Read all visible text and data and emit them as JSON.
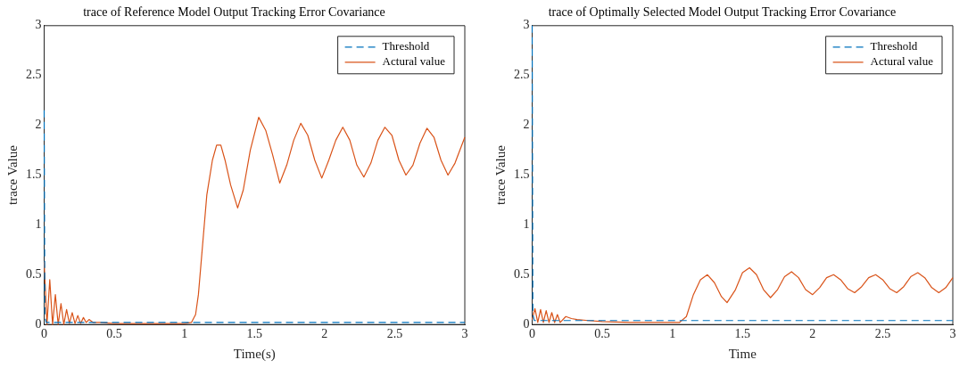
{
  "chart_data": [
    {
      "type": "line",
      "title": "trace of Reference Model Output Tracking Error Covariance",
      "xlabel": "Time(s)",
      "ylabel": "trace Value",
      "xlim": [
        0,
        3
      ],
      "xticks": [
        0,
        0.5,
        1,
        1.5,
        2,
        2.5,
        3
      ],
      "ylim": [
        0,
        3
      ],
      "yticks": [
        0,
        0.5,
        1,
        1.5,
        2,
        2.5,
        3
      ],
      "legend": "top right",
      "grid": false,
      "marker": "none",
      "series": [
        {
          "name": "Threshold",
          "color": "#0072bd",
          "line_style": "dashed",
          "x": [
            0,
            0.005,
            0.015,
            3
          ],
          "values": [
            2.15,
            0.08,
            0.02,
            0.02
          ]
        },
        {
          "name": "Actural value",
          "color": "#d95319",
          "line_style": "solid",
          "x": [
            0,
            0.02,
            0.04,
            0.06,
            0.08,
            0.1,
            0.12,
            0.14,
            0.16,
            0.18,
            0.2,
            0.22,
            0.24,
            0.26,
            0.28,
            0.3,
            0.32,
            0.35,
            0.4,
            0.5,
            0.7,
            0.9,
            1.0,
            1.05,
            1.08,
            1.1,
            1.13,
            1.16,
            1.2,
            1.23,
            1.26,
            1.29,
            1.33,
            1.38,
            1.42,
            1.47,
            1.53,
            1.58,
            1.63,
            1.68,
            1.73,
            1.78,
            1.83,
            1.88,
            1.93,
            1.98,
            2.03,
            2.08,
            2.13,
            2.18,
            2.23,
            2.28,
            2.33,
            2.38,
            2.43,
            2.48,
            2.53,
            2.58,
            2.63,
            2.68,
            2.73,
            2.78,
            2.83,
            2.88,
            2.93,
            3
          ],
          "values": [
            0.63,
            0,
            0.45,
            0,
            0.3,
            0,
            0.21,
            0,
            0.15,
            0.01,
            0.12,
            0.01,
            0.09,
            0.01,
            0.07,
            0.02,
            0.05,
            0.02,
            0.02,
            0.01,
            0.01,
            0.01,
            0.01,
            0.02,
            0.1,
            0.3,
            0.8,
            1.3,
            1.65,
            1.8,
            1.8,
            1.65,
            1.4,
            1.17,
            1.35,
            1.75,
            2.08,
            1.95,
            1.7,
            1.42,
            1.6,
            1.85,
            2.02,
            1.9,
            1.65,
            1.47,
            1.65,
            1.85,
            1.98,
            1.85,
            1.6,
            1.48,
            1.62,
            1.85,
            1.98,
            1.9,
            1.65,
            1.5,
            1.6,
            1.82,
            1.97,
            1.88,
            1.65,
            1.5,
            1.62,
            1.88
          ]
        }
      ]
    },
    {
      "type": "line",
      "title": "trace of Optimally Selected Model Output Tracking Error Covariance",
      "xlabel": "Time",
      "ylabel": "trace Value",
      "xlim": [
        0,
        3
      ],
      "xticks": [
        0,
        0.5,
        1,
        1.5,
        2,
        2.5,
        3
      ],
      "ylim": [
        0,
        3
      ],
      "yticks": [
        0,
        0.5,
        1,
        1.5,
        2,
        2.5,
        3
      ],
      "legend": "top right",
      "grid": false,
      "marker": "none",
      "series": [
        {
          "name": "Threshold",
          "color": "#0072bd",
          "line_style": "dashed",
          "x": [
            0,
            0.005,
            0.015,
            3
          ],
          "values": [
            3,
            0.1,
            0.04,
            0.04
          ]
        },
        {
          "name": "Actural value",
          "color": "#d95319",
          "line_style": "solid",
          "x": [
            0,
            0.02,
            0.04,
            0.06,
            0.08,
            0.1,
            0.12,
            0.14,
            0.16,
            0.18,
            0.2,
            0.24,
            0.28,
            0.32,
            0.4,
            0.5,
            0.7,
            0.9,
            1.05,
            1.1,
            1.15,
            1.2,
            1.25,
            1.3,
            1.35,
            1.39,
            1.45,
            1.5,
            1.55,
            1.6,
            1.65,
            1.7,
            1.75,
            1.8,
            1.85,
            1.9,
            1.95,
            2.0,
            2.05,
            2.1,
            2.15,
            2.2,
            2.25,
            2.3,
            2.35,
            2.4,
            2.45,
            2.5,
            2.55,
            2.6,
            2.65,
            2.7,
            2.75,
            2.8,
            2.85,
            2.9,
            2.95,
            3
          ],
          "values": [
            0.05,
            0.16,
            0.02,
            0.15,
            0.02,
            0.14,
            0.02,
            0.12,
            0.02,
            0.1,
            0.02,
            0.08,
            0.06,
            0.05,
            0.04,
            0.03,
            0.02,
            0.02,
            0.02,
            0.08,
            0.3,
            0.45,
            0.5,
            0.42,
            0.28,
            0.22,
            0.35,
            0.52,
            0.57,
            0.5,
            0.35,
            0.27,
            0.35,
            0.48,
            0.53,
            0.47,
            0.35,
            0.3,
            0.37,
            0.47,
            0.5,
            0.45,
            0.36,
            0.32,
            0.38,
            0.47,
            0.5,
            0.45,
            0.36,
            0.32,
            0.38,
            0.48,
            0.52,
            0.47,
            0.37,
            0.32,
            0.37,
            0.47
          ]
        }
      ]
    }
  ]
}
